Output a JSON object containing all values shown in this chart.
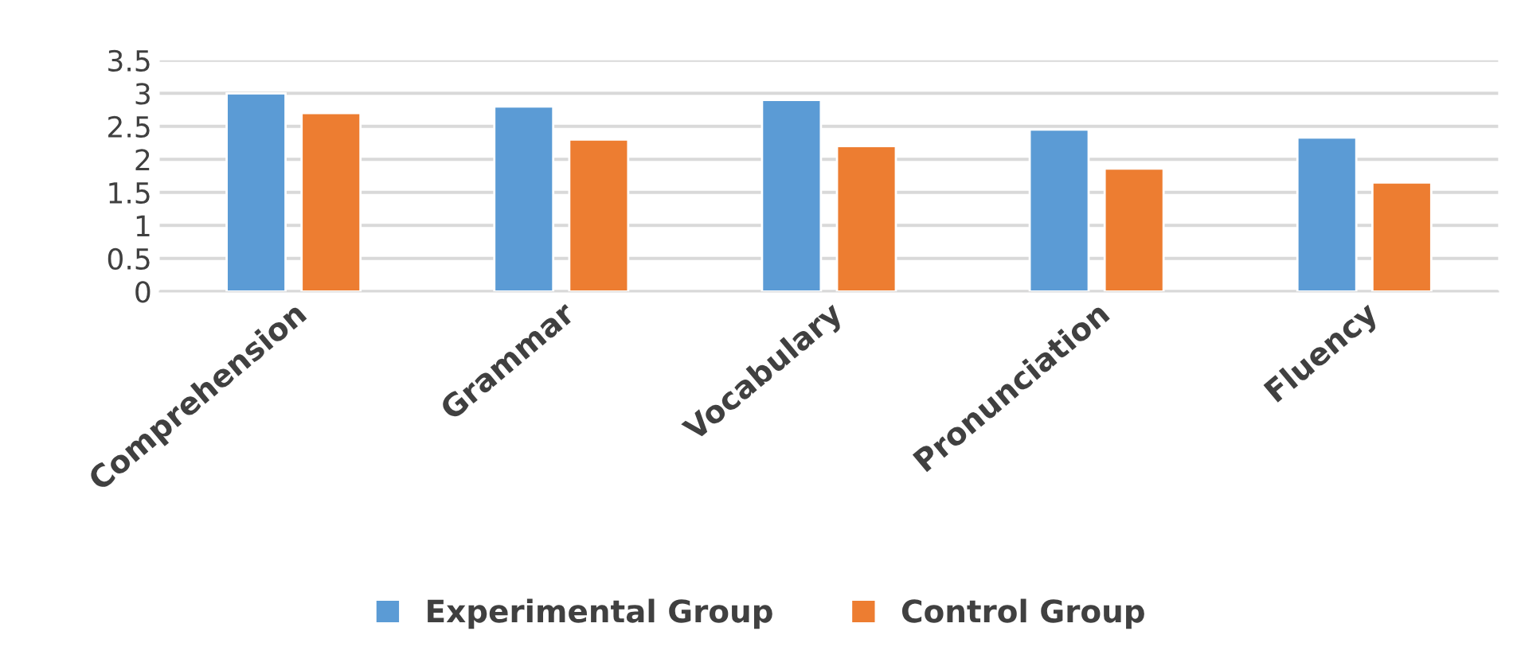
{
  "chart_data": {
    "type": "bar",
    "categories": [
      "Comprehension",
      "Grammar",
      "Vocabulary",
      "Pronunciation",
      "Fluency"
    ],
    "series": [
      {
        "name": "Experimental Group",
        "color": "#5b9bd5",
        "values": [
          3.0,
          2.8,
          2.9,
          2.45,
          2.33
        ]
      },
      {
        "name": "Control Group",
        "color": "#ed7d31",
        "values": [
          2.7,
          2.3,
          2.2,
          1.86,
          1.65
        ]
      }
    ],
    "ylim": [
      0,
      3.5
    ],
    "yticks": [
      0,
      0.5,
      1,
      1.5,
      2,
      2.5,
      3,
      3.5
    ],
    "grid": "y",
    "legend": "bottom"
  }
}
